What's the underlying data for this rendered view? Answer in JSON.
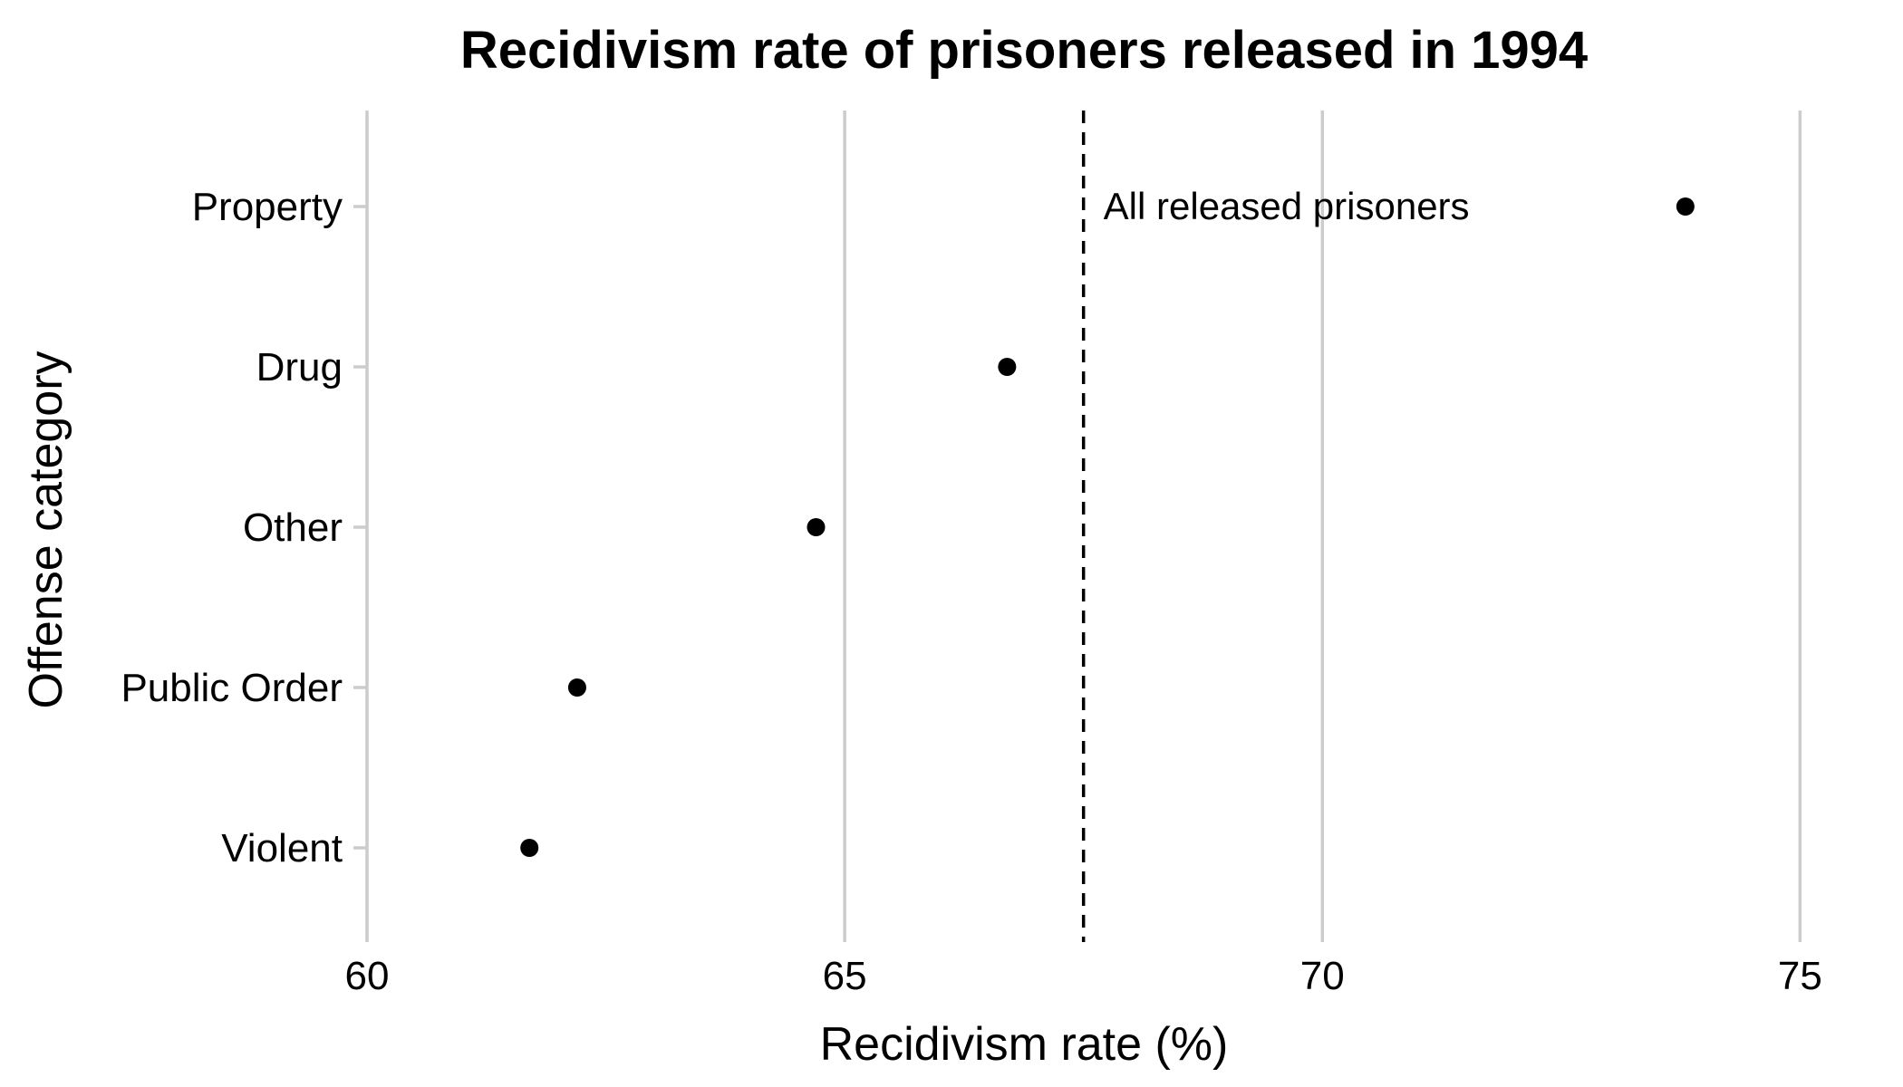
{
  "chart_data": {
    "type": "scatter",
    "title": "Recidivism rate of prisoners released in 1994",
    "xlabel": "Recidivism rate (%)",
    "ylabel": "Offense category",
    "xlim": [
      60,
      75.3
    ],
    "xticks": [
      60,
      65,
      70,
      75
    ],
    "categories": [
      "Property",
      "Drug",
      "Other",
      "Public Order",
      "Violent"
    ],
    "values": [
      73.8,
      66.7,
      64.7,
      62.2,
      61.7
    ],
    "reference_line": {
      "x": 67.5,
      "label": "All released prisoners",
      "style": "dashed"
    },
    "grid": "vertical",
    "legend": "none",
    "marker_color": "#000000",
    "grid_color": "#cccccc"
  }
}
